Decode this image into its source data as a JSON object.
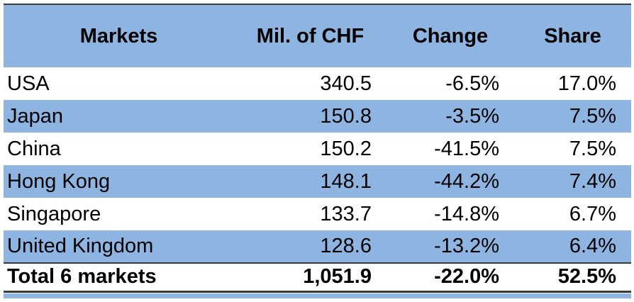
{
  "table": {
    "columns": [
      {
        "label": "Markets"
      },
      {
        "label": "Mil. of CHF"
      },
      {
        "label": "Change"
      },
      {
        "label": "Share"
      }
    ],
    "rows": [
      {
        "market": "USA",
        "mil_chf": "340.5",
        "change": "-6.5%",
        "share": "17.0%"
      },
      {
        "market": "Japan",
        "mil_chf": "150.8",
        "change": "-3.5%",
        "share": "7.5%"
      },
      {
        "market": "China",
        "mil_chf": "150.2",
        "change": "-41.5%",
        "share": "7.5%"
      },
      {
        "market": "Hong Kong",
        "mil_chf": "148.1",
        "change": "-44.2%",
        "share": "7.4%"
      },
      {
        "market": "Singapore",
        "mil_chf": "133.7",
        "change": "-14.8%",
        "share": "6.7%"
      },
      {
        "market": "United Kingdom",
        "mil_chf": "128.6",
        "change": "-13.2%",
        "share": "6.4%"
      }
    ],
    "total": {
      "market": "Total 6 markets",
      "mil_chf": "1,051.9",
      "change": "-22.0%",
      "share": "52.5%"
    }
  },
  "colors": {
    "header_fill": "#8EB4E2",
    "alt_row_fill": "#8EB4E2",
    "accent_bar": "#8EB4E2",
    "border_dark": "#3B3B3B",
    "text": "#000000"
  },
  "chart_data": {
    "type": "table",
    "title": "",
    "columns": [
      "Markets",
      "Mil. of CHF",
      "Change",
      "Share"
    ],
    "categories": [
      "USA",
      "Japan",
      "China",
      "Hong Kong",
      "Singapore",
      "United Kingdom",
      "Total 6 markets"
    ],
    "series": [
      {
        "name": "Mil. of CHF",
        "values": [
          340.5,
          150.8,
          150.2,
          148.1,
          133.7,
          128.6,
          1051.9
        ]
      },
      {
        "name": "Change %",
        "values": [
          -6.5,
          -3.5,
          -41.5,
          -44.2,
          -14.8,
          -13.2,
          -22.0
        ]
      },
      {
        "name": "Share %",
        "values": [
          17.0,
          7.5,
          7.5,
          7.4,
          6.7,
          6.4,
          52.5
        ]
      }
    ]
  }
}
